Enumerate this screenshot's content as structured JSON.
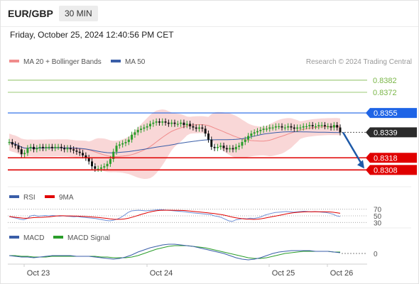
{
  "header": {
    "symbol": "EUR/GBP",
    "timeframe": "30 MIN"
  },
  "datetime": "Friday, October 25, 2024 12:40:56 PM CET",
  "legend": {
    "ma20": "MA 20 + Bollinger Bands",
    "ma50": "MA 50",
    "credit": "Research © 2024 Trading Central"
  },
  "colors": {
    "up": "#2a9d2a",
    "down": "#111111",
    "ma20": "#f08c8c",
    "band": "#f7c6c6",
    "ma50": "#3a5ea8",
    "resistance": "#7ab648",
    "pivot": "#1e64e6",
    "support": "#e00000",
    "current": "#2b2b2b",
    "arrow": "#1e5aa8"
  },
  "chart_data": [
    {
      "type": "candlestick",
      "x_ticks": [
        "Oct 23",
        "Oct 24",
        "Oct 25",
        "Oct 26"
      ],
      "ylim": [
        0.83,
        0.8389
      ],
      "close_series": [
        0.8331,
        0.8329,
        0.8328,
        0.8325,
        0.8321,
        0.8322,
        0.8326,
        0.8327,
        0.8325,
        0.8326,
        0.8327,
        0.8326,
        0.8327,
        0.8327,
        0.8326,
        0.8327,
        0.8327,
        0.8326,
        0.8325,
        0.8326,
        0.8325,
        0.8324,
        0.8323,
        0.8322,
        0.832,
        0.8318,
        0.8315,
        0.8311,
        0.8309,
        0.8309,
        0.831,
        0.8311,
        0.8313,
        0.8317,
        0.8323,
        0.8328,
        0.8329,
        0.833,
        0.8331,
        0.8333,
        0.8337,
        0.8339,
        0.8341,
        0.8342,
        0.8343,
        0.8344,
        0.8346,
        0.8347,
        0.8348,
        0.8347,
        0.8348,
        0.8347,
        0.8346,
        0.8347,
        0.8346,
        0.8346,
        0.8347,
        0.8345,
        0.8346,
        0.8344,
        0.8343,
        0.8342,
        0.8343,
        0.8342,
        0.8338,
        0.8333,
        0.8327,
        0.8326,
        0.8327,
        0.8328,
        0.8326,
        0.8325,
        0.8326,
        0.8325,
        0.8327,
        0.8328,
        0.8331,
        0.8333,
        0.8336,
        0.8338,
        0.8339,
        0.834,
        0.8341,
        0.8342,
        0.8342,
        0.8343,
        0.8343,
        0.8344,
        0.8344,
        0.8343,
        0.8343,
        0.8344,
        0.8343,
        0.8342,
        0.8343,
        0.8343,
        0.8344,
        0.8344,
        0.8345,
        0.8344,
        0.8344,
        0.8345,
        0.8345,
        0.8344,
        0.8344,
        0.8343,
        0.8345,
        0.8343,
        0.8339
      ],
      "last_price": 0.8339,
      "levels": [
        {
          "label": "0.8382",
          "value": 0.8382,
          "kind": "resistance"
        },
        {
          "label": "0.8372",
          "value": 0.8372,
          "kind": "resistance"
        },
        {
          "label": "0.8355",
          "value": 0.8355,
          "kind": "pivot"
        },
        {
          "label": "0.8339",
          "value": 0.8339,
          "kind": "current"
        },
        {
          "label": "0.8318",
          "value": 0.8318,
          "kind": "support"
        },
        {
          "label": "0.8308",
          "value": 0.8308,
          "kind": "support"
        }
      ],
      "series": [
        {
          "name": "MA 20 + Bollinger Bands"
        },
        {
          "name": "MA 50"
        }
      ]
    },
    {
      "type": "line",
      "series": [
        {
          "name": "RSI"
        },
        {
          "name": "9MA"
        }
      ],
      "levels": [
        "70",
        "50",
        "30"
      ],
      "rsi_values": [
        48,
        45,
        43,
        40,
        38,
        42,
        50,
        52,
        49,
        50,
        51,
        50,
        51,
        50,
        49,
        50,
        49,
        48,
        47,
        48,
        46,
        45,
        44,
        43,
        42,
        40,
        38,
        36,
        35,
        37,
        40,
        45,
        52,
        60,
        65,
        66,
        67,
        66,
        65,
        66,
        67,
        68,
        69,
        68,
        67,
        66,
        65,
        64,
        63,
        62,
        60,
        59,
        58,
        57,
        56,
        55,
        54,
        50,
        48,
        45,
        40,
        35,
        33,
        38,
        40,
        42,
        41,
        43,
        42,
        44,
        47,
        52,
        55,
        58,
        60,
        61,
        62,
        63,
        62,
        61,
        62,
        63,
        64,
        63,
        62,
        63,
        62,
        61,
        60,
        58,
        55,
        50,
        48
      ]
    },
    {
      "type": "line",
      "series": [
        {
          "name": "MACD"
        },
        {
          "name": "MACD Signal"
        }
      ],
      "levels": [
        "0"
      ],
      "macd_values": [
        -0.0003,
        -0.0004,
        -0.0005,
        -0.0005,
        -0.0006,
        -0.0005,
        -0.0004,
        -0.0003,
        -0.0003,
        -0.0003,
        -0.0003,
        -0.0004,
        -0.0004,
        -0.0004,
        -0.0005,
        -0.0006,
        -0.0007,
        -0.0008,
        -0.0007,
        -0.0005,
        -0.0002,
        0.0002,
        0.0005,
        0.0008,
        0.001,
        0.0012,
        0.0013,
        0.0013,
        0.0012,
        0.0011,
        0.001,
        0.0008,
        0.0006,
        0.0004,
        0.0002,
        0.0,
        -0.0003,
        -0.0006,
        -0.0008,
        -0.0009,
        -0.0008,
        -0.0006,
        -0.0003,
        0.0,
        0.0002,
        0.0003,
        0.0004,
        0.0004,
        0.0004,
        0.0004,
        0.0003,
        0.0003,
        0.0003,
        0.0002,
        0.0001
      ],
      "signal_values": [
        -0.0003,
        -0.0003,
        -0.0004,
        -0.0004,
        -0.0005,
        -0.0005,
        -0.0005,
        -0.0004,
        -0.0004,
        -0.0004,
        -0.0004,
        -0.0004,
        -0.0004,
        -0.0004,
        -0.0004,
        -0.0005,
        -0.0005,
        -0.0006,
        -0.0006,
        -0.0006,
        -0.0005,
        -0.0003,
        0.0,
        0.0003,
        0.0006,
        0.0008,
        0.001,
        0.0011,
        0.0011,
        0.0011,
        0.001,
        0.0009,
        0.0008,
        0.0006,
        0.0004,
        0.0002,
        0.0,
        -0.0002,
        -0.0004,
        -0.0006,
        -0.0007,
        -0.0007,
        -0.0006,
        -0.0004,
        -0.0002,
        0.0,
        0.0001,
        0.0002,
        0.0003,
        0.0003,
        0.0003,
        0.0003,
        0.0003,
        0.0002,
        0.0002
      ],
      "ylim": [
        -0.0012,
        0.0016
      ]
    }
  ]
}
